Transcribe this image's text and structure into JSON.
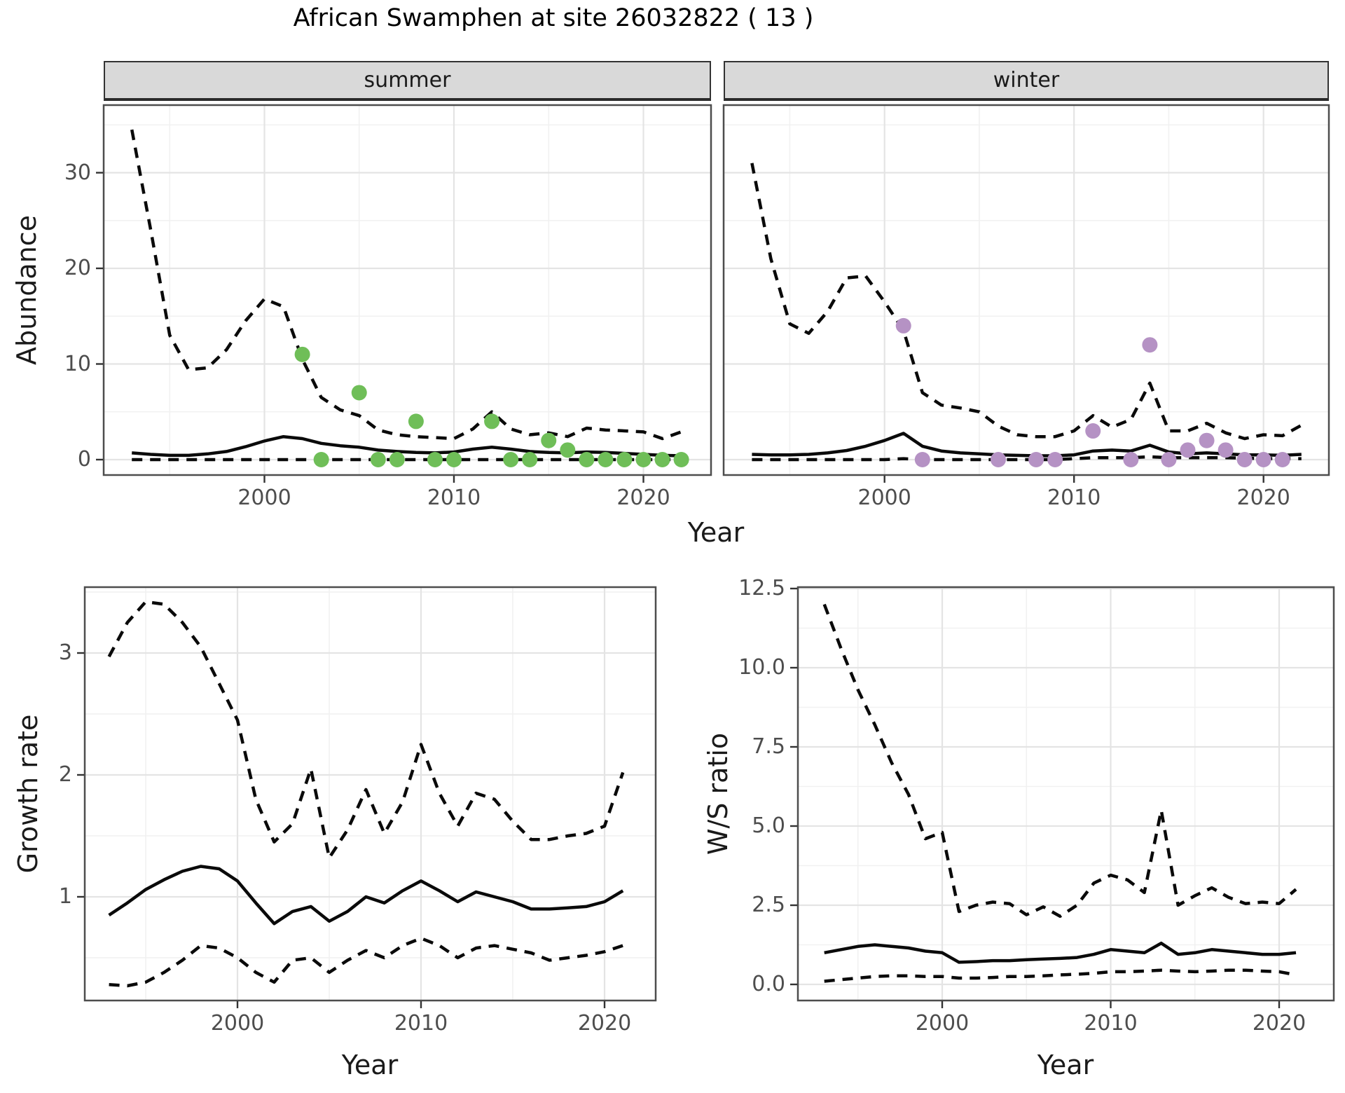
{
  "title": "African Swamphen at site 26032822 ( 13 )",
  "colors": {
    "summer_points": "#6FBE58",
    "winter_points": "#B592C4",
    "line": "#0a0a0a",
    "grid_major": "#e4e4e4",
    "grid_minor": "#f1f1f1",
    "panel_border": "#4d4d4d",
    "strip_background": "#d9d9d9",
    "tick_text": "#4d4d4d"
  },
  "top_plot": {
    "ylabel": "Abundance",
    "xlabel": "Year",
    "facet_summer": "summer",
    "facet_winter": "winter"
  },
  "bottom_left_plot": {
    "ylabel": "Growth rate",
    "xlabel": "Year"
  },
  "bottom_right_plot": {
    "ylabel": "W/S ratio",
    "xlabel": "Year"
  },
  "chart_data": [
    {
      "id": "abundance_summer",
      "panel": "summer",
      "type": "line",
      "facet": "summer",
      "title": "African Swamphen at site 26032822 ( 13 )",
      "xlabel": "Year",
      "ylabel": "Abundance",
      "xlim": [
        1991.5,
        2023.5
      ],
      "ylim": [
        -1.6,
        38.7
      ],
      "xtick_values": [
        2000,
        2010,
        2020
      ],
      "xtick_labels": [
        "2000",
        "2010",
        "2020"
      ],
      "ytick_values": [
        0,
        10,
        20,
        30
      ],
      "ytick_labels": [
        "0",
        "10",
        "20",
        "30"
      ],
      "x": [
        1993,
        1994,
        1995,
        1996,
        1997,
        1998,
        1999,
        2000,
        2001,
        2002,
        2003,
        2004,
        2005,
        2006,
        2007,
        2008,
        2009,
        2010,
        2011,
        2012,
        2013,
        2014,
        2015,
        2016,
        2017,
        2018,
        2019,
        2020,
        2021,
        2022
      ],
      "series": [
        {
          "name": "upper_ci",
          "style": "dashed",
          "values": [
            34.5,
            24,
            13,
            9.4,
            9.6,
            11.5,
            14.5,
            16.8,
            16,
            10.5,
            6.5,
            5.2,
            4.6,
            3.1,
            2.6,
            2.4,
            2.3,
            2.2,
            3.2,
            5.0,
            3.2,
            2.6,
            2.8,
            2.4,
            3.3,
            3.1,
            3.0,
            2.9,
            2.2,
            2.9
          ]
        },
        {
          "name": "median",
          "style": "solid",
          "values": [
            0.7,
            0.55,
            0.45,
            0.45,
            0.6,
            0.85,
            1.35,
            1.95,
            2.4,
            2.2,
            1.7,
            1.45,
            1.3,
            1.0,
            0.85,
            0.75,
            0.7,
            0.8,
            1.1,
            1.3,
            1.1,
            0.85,
            0.75,
            0.7,
            0.8,
            0.75,
            0.65,
            0.55,
            0.45,
            0.4
          ]
        },
        {
          "name": "lower_ci",
          "style": "dashed",
          "values": [
            0,
            0,
            0,
            0,
            0,
            0,
            0,
            0,
            0,
            0,
            0,
            0,
            0,
            0,
            0,
            0,
            0,
            0,
            0,
            0,
            0,
            0,
            0,
            0,
            0,
            0,
            0,
            0,
            0,
            0
          ]
        }
      ],
      "points": {
        "name": "observed_counts",
        "color": "#6FBE58",
        "x": [
          2002,
          2003,
          2005,
          2006,
          2007,
          2008,
          2009,
          2010,
          2012,
          2013,
          2014,
          2015,
          2016,
          2017,
          2018,
          2019,
          2020,
          2021,
          2022
        ],
        "y": [
          11,
          0,
          7,
          0,
          0,
          4,
          0,
          0,
          4,
          0,
          0,
          2,
          1,
          0,
          0,
          0,
          0,
          0,
          0
        ]
      }
    },
    {
      "id": "abundance_winter",
      "panel": "winter",
      "type": "line",
      "facet": "winter",
      "xlabel": "Year",
      "ylabel": "Abundance",
      "xlim": [
        1991.5,
        2023.5
      ],
      "ylim": [
        -1.6,
        38.7
      ],
      "xtick_values": [
        2000,
        2010,
        2020
      ],
      "xtick_labels": [
        "2000",
        "2010",
        "2020"
      ],
      "ytick_values": [
        0,
        10,
        20,
        30
      ],
      "ytick_labels": [
        "0",
        "10",
        "20",
        "30"
      ],
      "x": [
        1993,
        1994,
        1995,
        1996,
        1997,
        1998,
        1999,
        2000,
        2001,
        2002,
        2003,
        2004,
        2005,
        2006,
        2007,
        2008,
        2009,
        2010,
        2011,
        2012,
        2013,
        2014,
        2015,
        2016,
        2017,
        2018,
        2019,
        2020,
        2021,
        2022
      ],
      "series": [
        {
          "name": "upper_ci",
          "style": "dashed",
          "values": [
            31,
            21,
            14.2,
            13.2,
            15.5,
            19,
            19.2,
            16.5,
            13.5,
            7.0,
            5.7,
            5.4,
            5.0,
            3.5,
            2.6,
            2.4,
            2.4,
            3.0,
            4.6,
            3.4,
            4.2,
            8.0,
            3.0,
            3.0,
            3.8,
            2.8,
            2.2,
            2.6,
            2.5,
            3.6
          ]
        },
        {
          "name": "median",
          "style": "solid",
          "values": [
            0.55,
            0.5,
            0.5,
            0.55,
            0.7,
            0.95,
            1.4,
            2.0,
            2.75,
            1.4,
            0.9,
            0.7,
            0.6,
            0.5,
            0.45,
            0.4,
            0.4,
            0.5,
            0.9,
            1.0,
            0.9,
            1.5,
            0.8,
            0.6,
            0.7,
            0.6,
            0.5,
            0.5,
            0.45,
            0.55
          ]
        },
        {
          "name": "lower_ci",
          "style": "dashed",
          "values": [
            0,
            0,
            0,
            0,
            0,
            0,
            0,
            0,
            0.1,
            0,
            0,
            0,
            0,
            0,
            0,
            0,
            0,
            0.1,
            0.2,
            0.2,
            0.2,
            0.3,
            0.2,
            0.2,
            0.2,
            0.2,
            0.15,
            0.1,
            0.1,
            0.1
          ]
        }
      ],
      "points": {
        "name": "observed_counts",
        "color": "#B592C4",
        "x": [
          2001,
          2002,
          2006,
          2008,
          2009,
          2011,
          2013,
          2014,
          2015,
          2016,
          2017,
          2018,
          2019,
          2020,
          2021
        ],
        "y": [
          14,
          0,
          0,
          0,
          0,
          3,
          0,
          12,
          0,
          1,
          2,
          1,
          0,
          0,
          0
        ]
      }
    },
    {
      "id": "growth_rate",
      "panel": "growth",
      "type": "line",
      "xlabel": "Year",
      "ylabel": "Growth rate",
      "xlim": [
        1991.7,
        2022.8
      ],
      "ylim": [
        0.15,
        3.55
      ],
      "xtick_values": [
        2000,
        2010,
        2020
      ],
      "xtick_labels": [
        "2000",
        "2010",
        "2020"
      ],
      "ytick_values": [
        1,
        2,
        3
      ],
      "ytick_labels": [
        "1",
        "2",
        "3"
      ],
      "x": [
        1993,
        1994,
        1995,
        1996,
        1997,
        1998,
        1999,
        2000,
        2001,
        2002,
        2003,
        2004,
        2005,
        2006,
        2007,
        2008,
        2009,
        2010,
        2011,
        2012,
        2013,
        2014,
        2015,
        2016,
        2017,
        2018,
        2019,
        2020,
        2021
      ],
      "series": [
        {
          "name": "upper_ci",
          "style": "dashed",
          "values": [
            2.97,
            3.25,
            3.42,
            3.4,
            3.25,
            3.05,
            2.75,
            2.45,
            1.8,
            1.45,
            1.6,
            2.05,
            1.32,
            1.55,
            1.88,
            1.52,
            1.78,
            2.25,
            1.85,
            1.58,
            1.85,
            1.8,
            1.62,
            1.47,
            1.47,
            1.5,
            1.52,
            1.58,
            2.02
          ]
        },
        {
          "name": "median",
          "style": "solid",
          "values": [
            0.85,
            0.95,
            1.06,
            1.14,
            1.21,
            1.25,
            1.23,
            1.13,
            0.95,
            0.78,
            0.88,
            0.92,
            0.8,
            0.88,
            1.0,
            0.95,
            1.05,
            1.13,
            1.05,
            0.96,
            1.04,
            1.0,
            0.96,
            0.9,
            0.9,
            0.91,
            0.92,
            0.96,
            1.05
          ]
        },
        {
          "name": "lower_ci",
          "style": "dashed",
          "values": [
            0.28,
            0.27,
            0.3,
            0.38,
            0.48,
            0.6,
            0.58,
            0.5,
            0.38,
            0.3,
            0.48,
            0.5,
            0.38,
            0.48,
            0.56,
            0.5,
            0.6,
            0.66,
            0.6,
            0.5,
            0.58,
            0.6,
            0.57,
            0.54,
            0.48,
            0.5,
            0.52,
            0.55,
            0.6
          ]
        }
      ]
    },
    {
      "id": "ws_ratio",
      "panel": "ws",
      "type": "line",
      "xlabel": "Year",
      "ylabel": "W/S ratio",
      "xlim": [
        1991.5,
        2023.2
      ],
      "ylim": [
        -0.5,
        12.7
      ],
      "xtick_values": [
        2000,
        2010,
        2020
      ],
      "xtick_labels": [
        "2000",
        "2010",
        "2020"
      ],
      "ytick_values": [
        0,
        2.5,
        5,
        7.5,
        10,
        12.5
      ],
      "ytick_labels": [
        "0.0",
        "2.5",
        "5.0",
        "7.5",
        "10.0",
        "12.5"
      ],
      "x": [
        1993,
        1994,
        1995,
        1996,
        1997,
        1998,
        1999,
        2000,
        2001,
        2002,
        2003,
        2004,
        2005,
        2006,
        2007,
        2008,
        2009,
        2010,
        2011,
        2012,
        2013,
        2014,
        2015,
        2016,
        2017,
        2018,
        2019,
        2020,
        2021
      ],
      "series": [
        {
          "name": "upper_ci",
          "style": "dashed",
          "values": [
            12.0,
            10.6,
            9.3,
            8.2,
            7.0,
            6.0,
            4.6,
            4.8,
            2.3,
            2.5,
            2.6,
            2.55,
            2.2,
            2.45,
            2.15,
            2.5,
            3.2,
            3.45,
            3.3,
            2.9,
            5.5,
            2.5,
            2.8,
            3.05,
            2.75,
            2.55,
            2.6,
            2.55,
            3.0
          ]
        },
        {
          "name": "median",
          "style": "solid",
          "values": [
            1.0,
            1.1,
            1.2,
            1.25,
            1.2,
            1.15,
            1.05,
            1.0,
            0.7,
            0.72,
            0.75,
            0.75,
            0.78,
            0.8,
            0.82,
            0.85,
            0.95,
            1.1,
            1.05,
            1.0,
            1.3,
            0.95,
            1.0,
            1.1,
            1.05,
            1.0,
            0.95,
            0.95,
            1.0
          ]
        },
        {
          "name": "lower_ci",
          "style": "dashed",
          "values": [
            0.1,
            0.15,
            0.2,
            0.25,
            0.27,
            0.27,
            0.25,
            0.25,
            0.2,
            0.2,
            0.22,
            0.25,
            0.25,
            0.27,
            0.3,
            0.32,
            0.35,
            0.4,
            0.4,
            0.42,
            0.45,
            0.42,
            0.4,
            0.42,
            0.45,
            0.45,
            0.42,
            0.4,
            0.3
          ]
        }
      ]
    }
  ]
}
